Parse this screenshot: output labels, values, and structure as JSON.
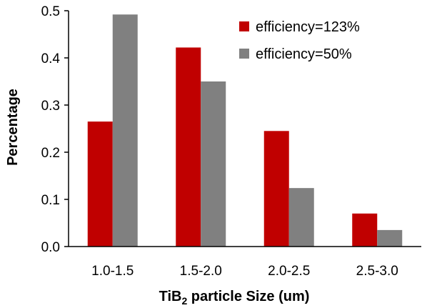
{
  "chart_data": {
    "type": "bar",
    "categories": [
      "1.0-1.5",
      "1.5-2.0",
      "2.0-2.5",
      "2.5-3.0"
    ],
    "series": [
      {
        "name": "efficiency=123%",
        "color": "#c00000",
        "values": [
          0.265,
          0.422,
          0.245,
          0.07
        ]
      },
      {
        "name": "efficiency=50%",
        "color": "#808080",
        "values": [
          0.492,
          0.35,
          0.124,
          0.035
        ]
      }
    ],
    "xlabel_prefix": "TiB",
    "xlabel_sub": "2",
    "xlabel_suffix": " particle Size (um)",
    "ylabel": "Percentage",
    "ylim": [
      0,
      0.5
    ],
    "yticks": [
      "0.0",
      "0.1",
      "0.2",
      "0.3",
      "0.4",
      "0.5"
    ],
    "legend_position": "top-right",
    "grid": false
  }
}
